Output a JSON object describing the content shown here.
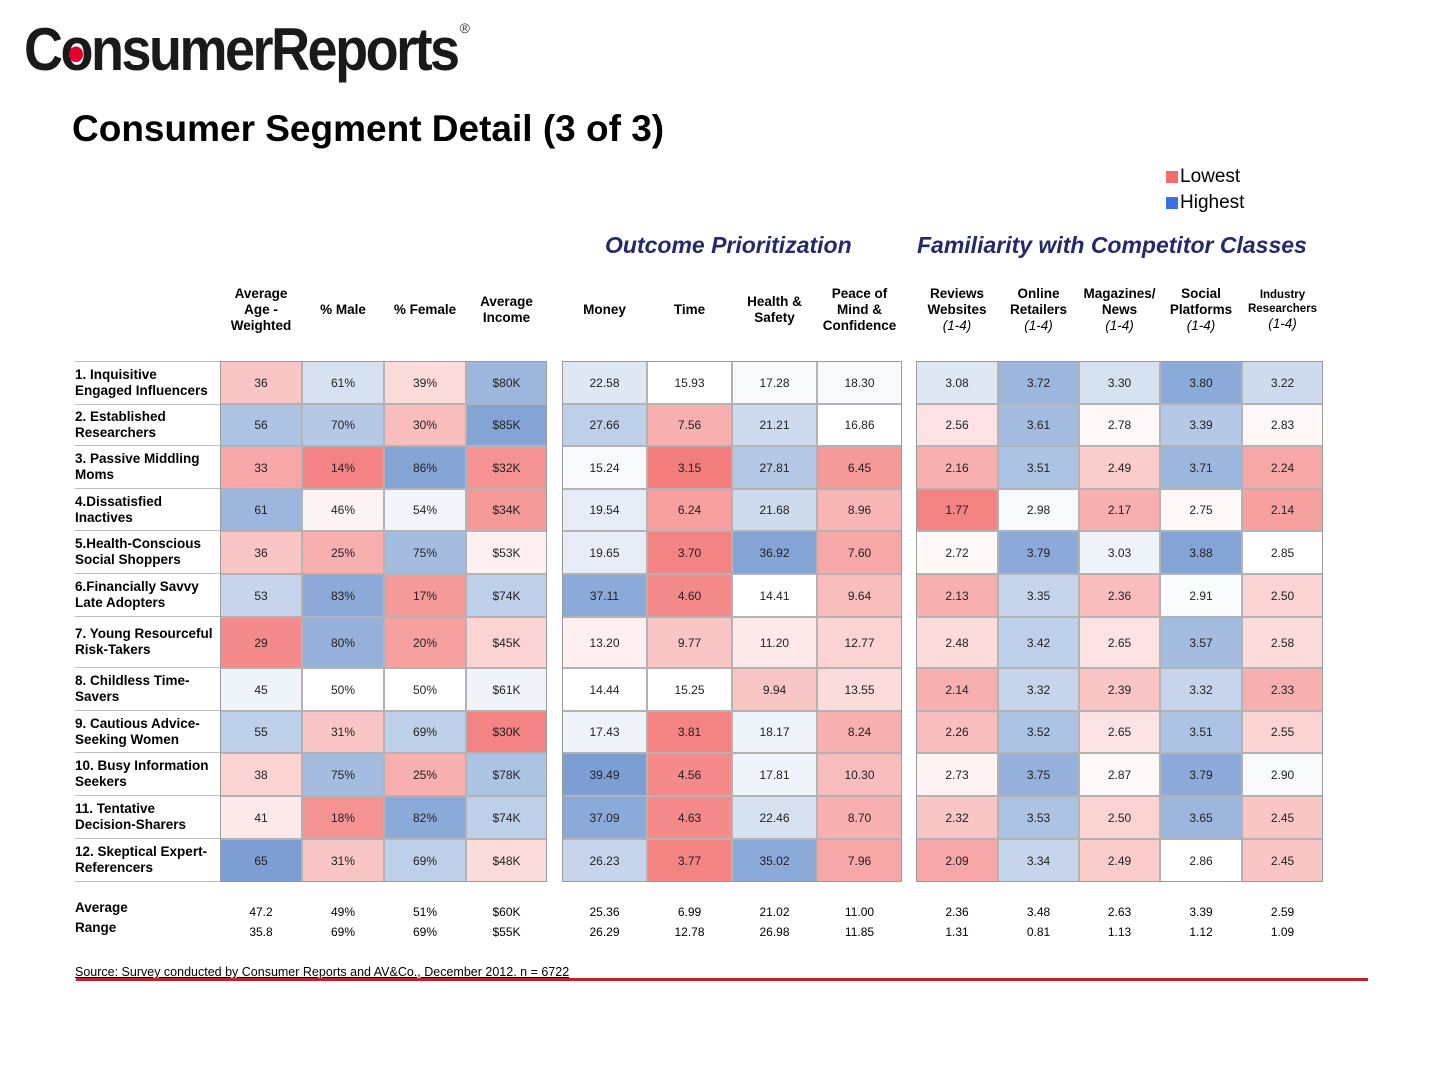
{
  "brand": {
    "logo_text": "ConsumerReports",
    "registered_mark": "®",
    "accent": "#e4002b"
  },
  "title": "Consumer Segment Detail (3 of 3)",
  "legend": [
    {
      "label": "Lowest",
      "color": "#f26d6d"
    },
    {
      "label": "Highest",
      "color": "#3d6fe0"
    }
  ],
  "sections": [
    {
      "id": "outcome",
      "title": "Outcome Prioritization"
    },
    {
      "id": "familiarity",
      "title": "Familiarity with Competitor Classes"
    }
  ],
  "columns": [
    {
      "label": "Average\nAge -\nWeighted",
      "range": ""
    },
    {
      "label": "% Male",
      "range": ""
    },
    {
      "label": "% Female",
      "range": ""
    },
    {
      "label": "Average\nIncome",
      "range": ""
    },
    {
      "label": "Money",
      "range": ""
    },
    {
      "label": "Time",
      "range": ""
    },
    {
      "label": "Health &\nSafety",
      "range": ""
    },
    {
      "label": "Peace of\nMind &\nConfidence",
      "range": ""
    },
    {
      "label": "Reviews\nWebsites",
      "range": "(1-4)"
    },
    {
      "label": "Online\nRetailers",
      "range": "(1-4)"
    },
    {
      "label": "Magazines/\nNews",
      "range": "(1-4)"
    },
    {
      "label": "Social\nPlatforms",
      "range": "(1-4)"
    },
    {
      "label": "Industry\nResearchers",
      "range": "(1-4)"
    }
  ],
  "segments": [
    {
      "name": "1. Inquisitive\nEngaged Influencers",
      "values": [
        "36",
        "61%",
        "39%",
        "$80K",
        "22.58",
        "15.93",
        "17.28",
        "18.30",
        "3.08",
        "3.72",
        "3.30",
        "3.80",
        "3.22"
      ],
      "shades": [
        -0.4,
        0.25,
        -0.25,
        0.6,
        0.2,
        0,
        0.05,
        0.05,
        0.2,
        0.6,
        0.25,
        0.7,
        0.3
      ]
    },
    {
      "name": "2. Established\nResearchers",
      "values": [
        "56",
        "70%",
        "30%",
        "$85K",
        "27.66",
        "7.56",
        "21.21",
        "16.86",
        "2.56",
        "3.61",
        "2.78",
        "3.39",
        "2.83"
      ],
      "shades": [
        0.5,
        0.45,
        -0.45,
        0.75,
        0.4,
        -0.55,
        0.3,
        0,
        -0.2,
        0.55,
        -0.05,
        0.45,
        -0.05
      ]
    },
    {
      "name": "3. Passive Middling\nMoms",
      "values": [
        "33",
        "14%",
        "86%",
        "$32K",
        "15.24",
        "3.15",
        "27.81",
        "6.45",
        "2.16",
        "3.51",
        "2.49",
        "3.71",
        "2.24"
      ],
      "shades": [
        -0.6,
        -0.85,
        0.75,
        -0.75,
        0.05,
        -0.9,
        0.45,
        -0.7,
        -0.55,
        0.5,
        -0.35,
        0.6,
        -0.6
      ]
    },
    {
      "name": "4.Dissatisfied\nInactives",
      "values": [
        "61",
        "46%",
        "54%",
        "$34K",
        "19.54",
        "6.24",
        "21.68",
        "8.96",
        "1.77",
        "2.98",
        "2.17",
        "2.75",
        "2.14"
      ],
      "shades": [
        0.6,
        -0.08,
        0.08,
        -0.7,
        0.15,
        -0.65,
        0.3,
        -0.5,
        -0.85,
        0.05,
        -0.55,
        -0.05,
        -0.65
      ]
    },
    {
      "name": "5.Health-Conscious\nSocial Shoppers",
      "values": [
        "36",
        "25%",
        "75%",
        "$53K",
        "19.65",
        "3.70",
        "36.92",
        "7.60",
        "2.72",
        "3.79",
        "3.03",
        "3.88",
        "2.85"
      ],
      "shades": [
        -0.4,
        -0.55,
        0.55,
        -0.1,
        0.15,
        -0.85,
        0.75,
        -0.6,
        -0.05,
        0.7,
        0.1,
        0.75,
        0
      ]
    },
    {
      "name": "6.Financially Savvy\nLate Adopters",
      "values": [
        "53",
        "83%",
        "17%",
        "$74K",
        "37.11",
        "4.60",
        "14.41",
        "9.64",
        "2.13",
        "3.35",
        "2.36",
        "2.91",
        "2.50"
      ],
      "shades": [
        0.35,
        0.7,
        -0.7,
        0.4,
        0.7,
        -0.8,
        0,
        -0.45,
        -0.55,
        0.35,
        -0.45,
        0.03,
        -0.3
      ]
    },
    {
      "name": "7. Young Resourceful\nRisk-Takers",
      "values": [
        "29",
        "80%",
        "20%",
        "$45K",
        "13.20",
        "9.77",
        "11.20",
        "12.77",
        "2.48",
        "3.42",
        "2.65",
        "3.57",
        "2.58"
      ],
      "shades": [
        -0.8,
        0.65,
        -0.65,
        -0.3,
        -0.1,
        -0.4,
        -0.15,
        -0.3,
        -0.25,
        0.4,
        -0.2,
        0.55,
        -0.25
      ]
    },
    {
      "name": "8. Childless Time-\nSavers",
      "values": [
        "45",
        "50%",
        "50%",
        "$61K",
        "14.44",
        "15.25",
        "9.94",
        "13.55",
        "2.14",
        "3.32",
        "2.39",
        "3.32",
        "2.33"
      ],
      "shades": [
        0.1,
        0,
        0,
        0.1,
        0,
        0,
        -0.4,
        -0.25,
        -0.55,
        0.35,
        -0.4,
        0.35,
        -0.55
      ]
    },
    {
      "name": "9. Cautious Advice-\nSeeking Women",
      "values": [
        "55",
        "31%",
        "69%",
        "$30K",
        "17.43",
        "3.81",
        "18.17",
        "8.24",
        "2.26",
        "3.52",
        "2.65",
        "3.51",
        "2.55"
      ],
      "shades": [
        0.4,
        -0.4,
        0.4,
        -0.85,
        0.1,
        -0.85,
        0.1,
        -0.55,
        -0.45,
        0.5,
        -0.2,
        0.5,
        -0.3
      ]
    },
    {
      "name": "10. Busy Information\nSeekers",
      "values": [
        "38",
        "75%",
        "25%",
        "$78K",
        "39.49",
        "4.56",
        "17.81",
        "10.30",
        "2.73",
        "3.75",
        "2.87",
        "3.79",
        "2.90"
      ],
      "shades": [
        -0.3,
        0.55,
        -0.55,
        0.5,
        0.8,
        -0.8,
        0.1,
        -0.45,
        -0.08,
        0.65,
        -0.05,
        0.7,
        0.05
      ]
    },
    {
      "name": "11. Tentative\nDecision-Sharers",
      "values": [
        "41",
        "18%",
        "82%",
        "$74K",
        "37.09",
        "4.63",
        "22.46",
        "8.70",
        "2.32",
        "3.53",
        "2.50",
        "3.65",
        "2.45"
      ],
      "shades": [
        -0.15,
        -0.75,
        0.7,
        0.4,
        0.7,
        -0.8,
        0.25,
        -0.55,
        -0.4,
        0.5,
        -0.3,
        0.6,
        -0.4
      ]
    },
    {
      "name": "12. Skeptical Expert-\nReferencers",
      "values": [
        "65",
        "31%",
        "69%",
        "$48K",
        "26.23",
        "3.77",
        "35.02",
        "7.96",
        "2.09",
        "3.34",
        "2.49",
        "2.86",
        "2.45"
      ],
      "shades": [
        0.8,
        -0.4,
        0.4,
        -0.25,
        0.35,
        -0.85,
        0.7,
        -0.6,
        -0.6,
        0.35,
        -0.35,
        0,
        -0.4
      ]
    }
  ],
  "summary": {
    "average_label": "Average",
    "range_label": "Range",
    "average": [
      "47.2",
      "49%",
      "51%",
      "$60K",
      "25.36",
      "6.99",
      "21.02",
      "11.00",
      "2.36",
      "3.48",
      "2.63",
      "3.39",
      "2.59"
    ],
    "range": [
      "35.8",
      "69%",
      "69%",
      "$55K",
      "26.29",
      "12.78",
      "26.98",
      "11.85",
      "1.31",
      "0.81",
      "1.13",
      "1.12",
      "1.09"
    ]
  },
  "source": "Source: Survey conducted by Consumer Reports and AV&Co., December 2012. n = 6722",
  "colors": {
    "low": "#f26d6d",
    "high": "#5b86c8",
    "neutral": "#ffffff",
    "footer_rule": "#c2202f",
    "section_heading": "#26286d"
  }
}
